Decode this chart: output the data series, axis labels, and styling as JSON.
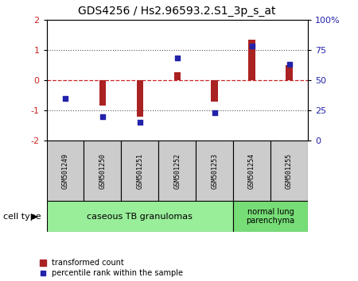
{
  "title": "GDS4256 / Hs2.96593.2.S1_3p_s_at",
  "samples": [
    "GSM501249",
    "GSM501250",
    "GSM501251",
    "GSM501252",
    "GSM501253",
    "GSM501254",
    "GSM501255"
  ],
  "transformed_count": [
    0.0,
    -0.85,
    -1.2,
    0.25,
    -0.72,
    1.35,
    0.5
  ],
  "percentile_rank": [
    35,
    20,
    15,
    68,
    23,
    78,
    63
  ],
  "ylim_left": [
    -2,
    2
  ],
  "ylim_right": [
    0,
    100
  ],
  "yticks_left": [
    -2,
    -1,
    0,
    1,
    2
  ],
  "yticks_right": [
    0,
    25,
    50,
    75,
    100
  ],
  "ytick_labels_right": [
    "0",
    "25",
    "50",
    "75",
    "100%"
  ],
  "bar_color": "#aa2222",
  "dot_color": "#2222aa",
  "zero_line_color": "#cc2222",
  "dotted_line_color": "#555555",
  "group1_label": "caseous TB granulomas",
  "group2_label": "normal lung\nparenchyma",
  "group1_color": "#99ee99",
  "group2_color": "#77dd77",
  "cell_type_label": "cell type",
  "legend_bar_label": "transformed count",
  "legend_dot_label": "percentile rank within the sample",
  "tick_label_color_left": "#cc2222",
  "tick_label_color_right": "#2222aa",
  "bar_width": 0.18,
  "sample_box_color": "#cccccc"
}
